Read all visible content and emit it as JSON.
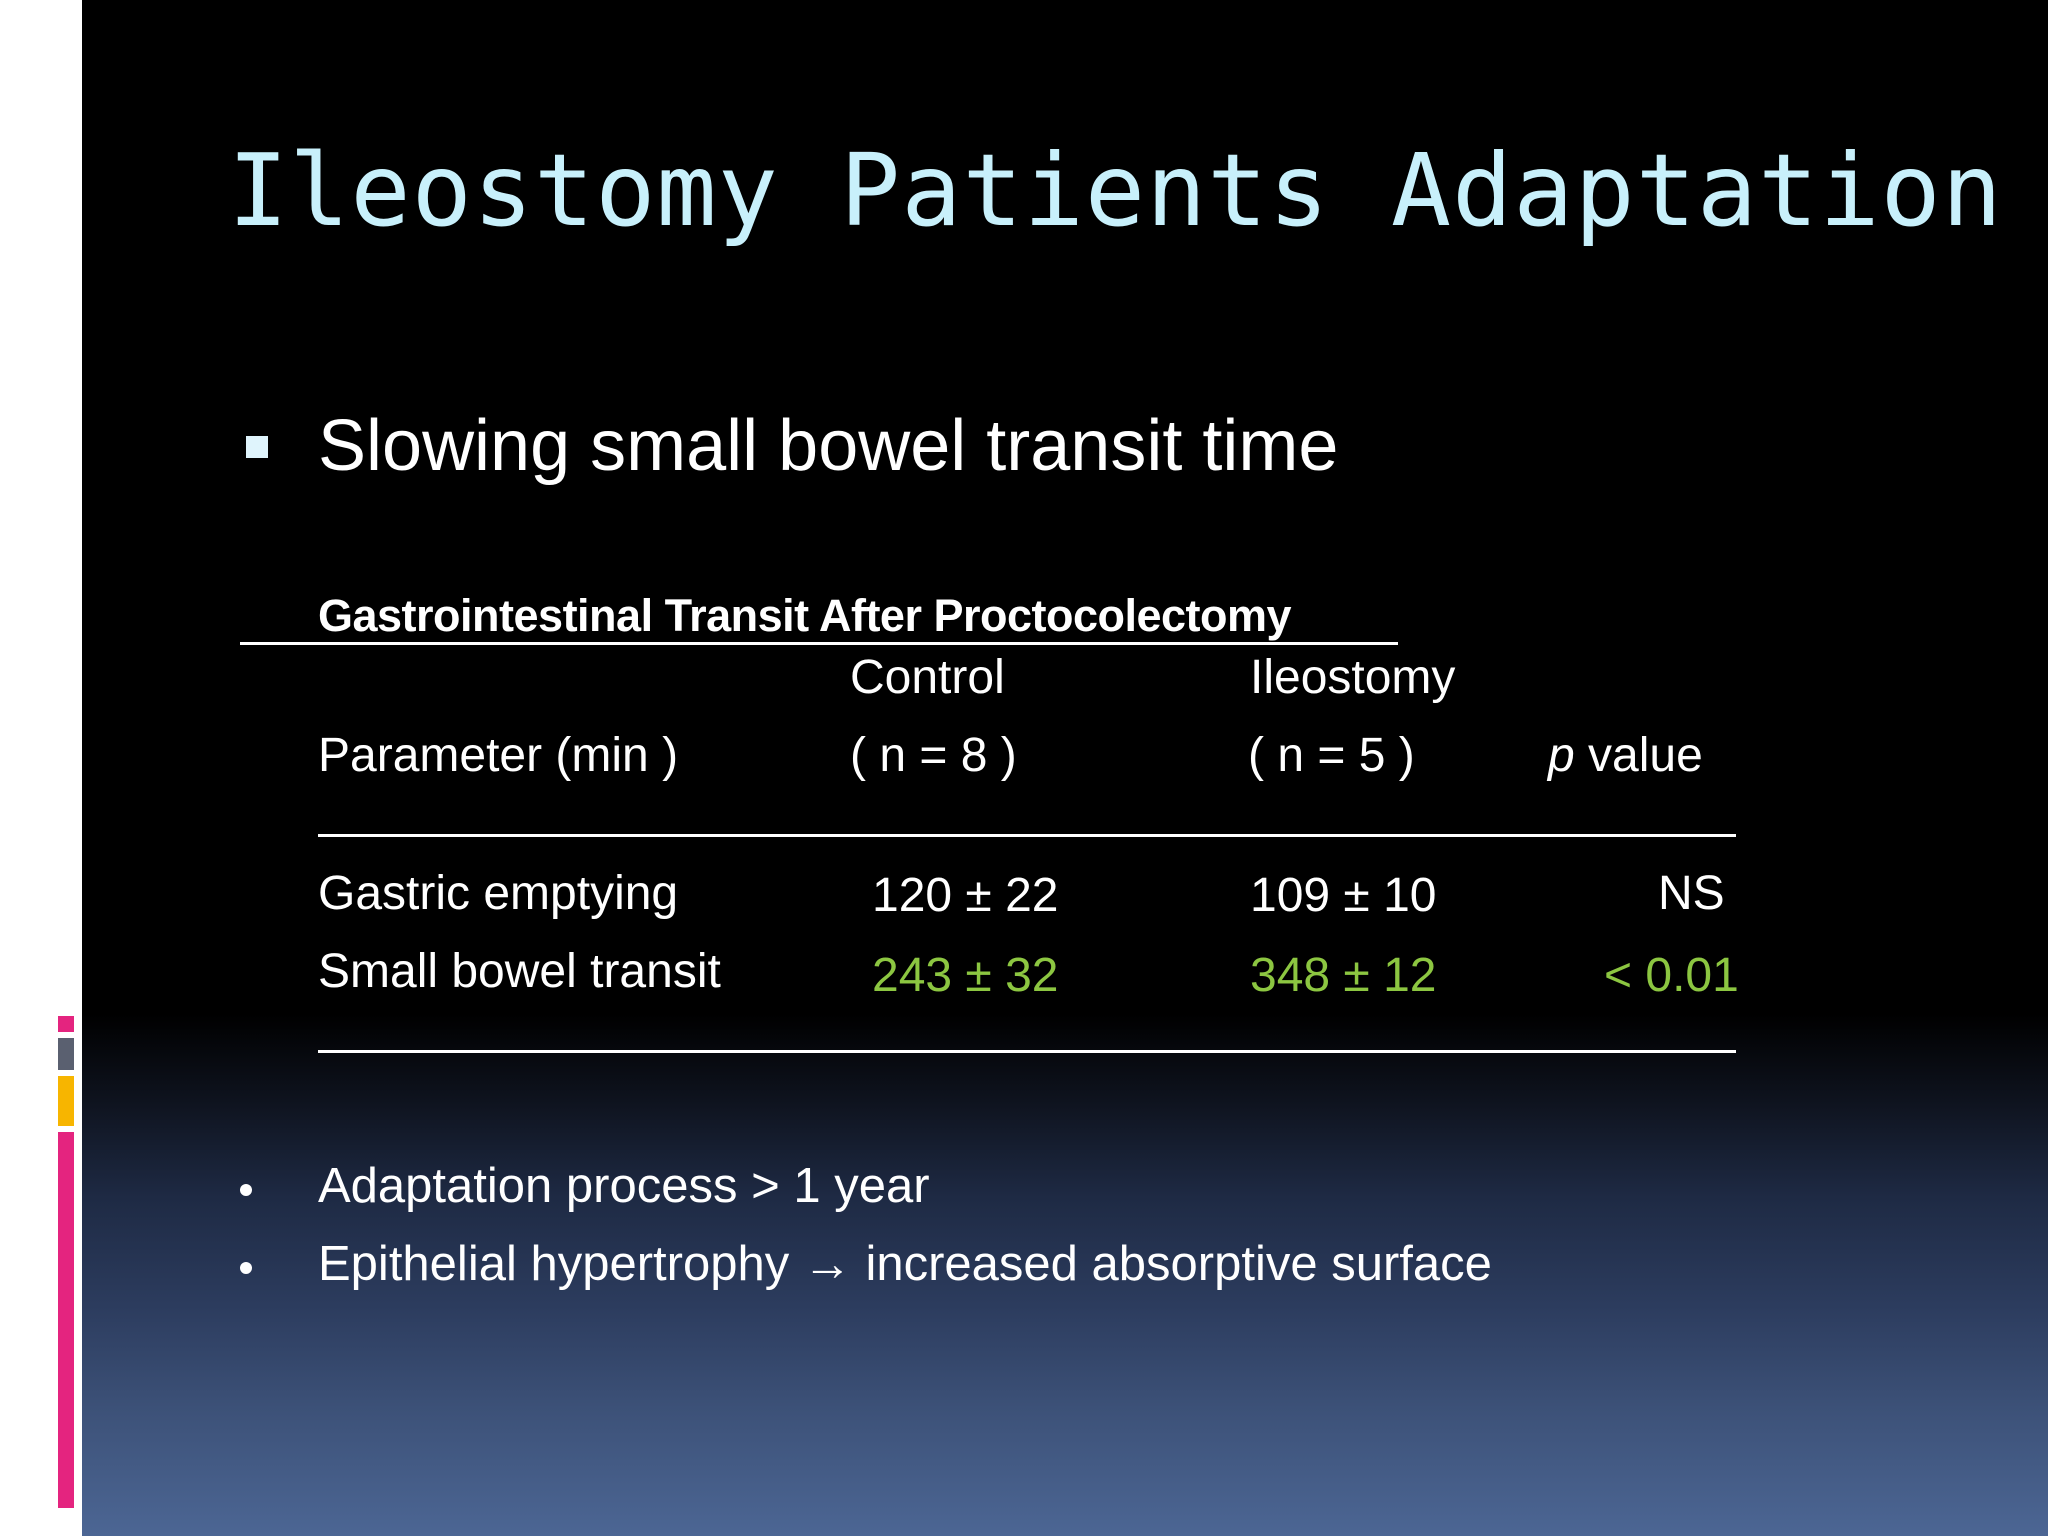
{
  "slide": {
    "title": "Ileostomy Patients Adaptation",
    "main_bullet": "Slowing small bowel transit time",
    "table": {
      "title": "Gastrointestinal Transit After Proctocolectomy",
      "header_row1": {
        "control": "Control",
        "ileostomy": "Ileostomy"
      },
      "header_row2": {
        "parameter": "Parameter (min )",
        "control_n": "( n = 8  )",
        "ileostomy_n": "( n = 5 )",
        "p_letter": "p",
        "p_rest": " value"
      },
      "rows": [
        {
          "parameter": "Gastric emptying",
          "control": "120 ± 22",
          "ileostomy": "109 ± 10",
          "p": "NS"
        },
        {
          "parameter": "Small bowel transit",
          "control": "243 ± 32",
          "ileostomy": "348 ± 12",
          "p": "< 0.01"
        }
      ]
    },
    "sub_bullets": [
      "Adaptation process > 1 year",
      "Epithelial hypertrophy → increased absorptive surface"
    ]
  },
  "colors": {
    "title": "#c8f0fb",
    "text": "#ffffff",
    "highlight": "#8cc641",
    "accent_pink": "#e4247f",
    "accent_gray": "#5a6070",
    "accent_yellow": "#f7b500"
  }
}
